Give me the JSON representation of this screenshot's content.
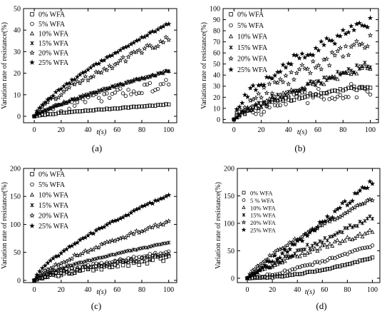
{
  "chart_data": [
    {
      "type": "scatter",
      "panel_label": "(a)",
      "xlabel": "t(s)",
      "ylabel": "Variation rate of resistance(%)",
      "xlim": [
        -8,
        106
      ],
      "ylim": [
        -3,
        50
      ],
      "xticks": [
        0,
        20,
        40,
        60,
        80,
        100
      ],
      "yticks": [
        0,
        10,
        20,
        30,
        40,
        50
      ],
      "legend_position": "top-left",
      "series": [
        {
          "name": "0%  WFA",
          "marker": "square",
          "final": 5.5,
          "exp": 0.8,
          "noise": 0.2
        },
        {
          "name": "5%  WFA",
          "marker": "circle",
          "final": 15,
          "exp": 0.75,
          "noise": 2.2
        },
        {
          "name": "10% WFA",
          "marker": "triangle",
          "final": 21,
          "exp": 0.8,
          "noise": 0.5
        },
        {
          "name": "15% WFA",
          "marker": "xstar",
          "final": 21,
          "exp": 0.8,
          "noise": 0.5
        },
        {
          "name": "20% WFA",
          "marker": "star-open",
          "final": 36,
          "exp": 0.75,
          "noise": 1.6
        },
        {
          "name": "25% WFA",
          "marker": "star-filled",
          "final": 43,
          "exp": 0.75,
          "noise": 0.4
        }
      ]
    },
    {
      "type": "scatter",
      "panel_label": "(b)",
      "xlabel": "t(s)",
      "ylabel": "Variation rate of resistance(%)",
      "xlim": [
        -8,
        106
      ],
      "ylim": [
        -3,
        100
      ],
      "xticks": [
        0,
        20,
        40,
        60,
        80,
        100
      ],
      "yticks": [
        0,
        10,
        20,
        30,
        40,
        50,
        60,
        70,
        80,
        90,
        100
      ],
      "legend_position": "top-right",
      "series": [
        {
          "name": "0%  WFA",
          "marker": "square",
          "final": 30,
          "exp": 0.55,
          "noise": 2
        },
        {
          "name": "5%  WFA",
          "marker": "circle",
          "final": 28,
          "exp": 0.6,
          "noise": 7
        },
        {
          "name": "10% WFA",
          "marker": "triangle",
          "final": 48,
          "exp": 0.8,
          "noise": 3
        },
        {
          "name": "15% WFA",
          "marker": "xstar",
          "final": 50,
          "exp": 0.8,
          "noise": 3
        },
        {
          "name": "20% WFA",
          "marker": "star-open",
          "final": 70,
          "exp": 0.7,
          "noise": 6
        },
        {
          "name": "25% WFA",
          "marker": "star-filled",
          "final": 87,
          "exp": 0.6,
          "noise": 5
        }
      ]
    },
    {
      "type": "scatter",
      "panel_label": "(c)",
      "xlabel": "t(s)",
      "ylabel": "Variation rate of resistance(%)",
      "xlim": [
        -8,
        106
      ],
      "ylim": [
        -4,
        200
      ],
      "xticks": [
        0,
        20,
        40,
        60,
        80,
        100
      ],
      "yticks": [
        0,
        50,
        100,
        150,
        200
      ],
      "legend_position": "top-left",
      "series": [
        {
          "name": "0%  WFA",
          "marker": "square",
          "final": 40,
          "exp": 0.7,
          "noise": 6
        },
        {
          "name": "5%  WFA",
          "marker": "circle",
          "final": 50,
          "exp": 0.75,
          "noise": 3
        },
        {
          "name": "10% WFA",
          "marker": "triangle",
          "final": 45,
          "exp": 0.8,
          "noise": 5
        },
        {
          "name": "15% WFA",
          "marker": "xstar",
          "final": 67,
          "exp": 0.7,
          "noise": 1
        },
        {
          "name": "20% WFA",
          "marker": "star-open",
          "final": 105,
          "exp": 0.75,
          "noise": 3
        },
        {
          "name": "25% WFA",
          "marker": "star-filled",
          "final": 152,
          "exp": 0.7,
          "noise": 2
        }
      ]
    },
    {
      "type": "scatter",
      "panel_label": "(d)",
      "xlabel": "t(s)",
      "ylabel": "Variation rate of resistance(%)",
      "xlim": [
        -8,
        106
      ],
      "ylim": [
        -8,
        200
      ],
      "xticks": [
        0,
        20,
        40,
        60,
        80,
        100
      ],
      "yticks": [
        0,
        50,
        100,
        150,
        200
      ],
      "legend_position": "top-left",
      "series": [
        {
          "name": "0% WFA",
          "marker": "square",
          "final": 38,
          "exp": 1.8,
          "noise": 1
        },
        {
          "name": "5 % WFA",
          "marker": "circle",
          "final": 60,
          "exp": 1.3,
          "noise": 2
        },
        {
          "name": "10% WFA",
          "marker": "triangle",
          "final": 85,
          "exp": 0.8,
          "noise": 4
        },
        {
          "name": "15% WFA",
          "marker": "xstar",
          "final": 110,
          "exp": 0.9,
          "noise": 5
        },
        {
          "name": "20% WFA",
          "marker": "star-open",
          "final": 143,
          "exp": 0.75,
          "noise": 3
        },
        {
          "name": "25% WFA",
          "marker": "star-filled",
          "final": 175,
          "exp": 1.05,
          "noise": 6
        }
      ]
    }
  ]
}
